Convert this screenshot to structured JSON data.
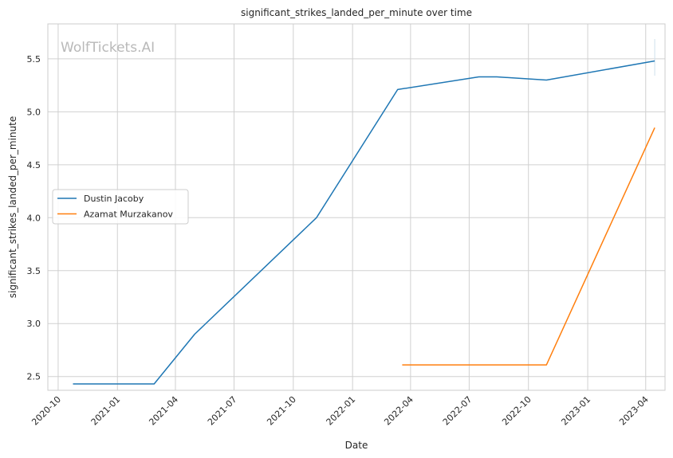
{
  "chart_data": {
    "type": "line",
    "title": "significant_strikes_landed_per_minute over time",
    "xlabel": "Date",
    "ylabel": "significant_strikes_landed_per_minute",
    "watermark": "WolfTickets.AI",
    "x_ticks": [
      "2020-10",
      "2021-01",
      "2021-04",
      "2021-07",
      "2021-10",
      "2022-01",
      "2022-04",
      "2022-07",
      "2022-10",
      "2023-01",
      "2023-04"
    ],
    "y_ticks": [
      "2.5",
      "3.0",
      "3.5",
      "4.0",
      "4.5",
      "5.0",
      "5.5"
    ],
    "xlim": [
      "2020-09-15",
      "2023-05-01"
    ],
    "ylim": [
      2.37,
      5.83
    ],
    "grid": true,
    "legend_position": "center-left",
    "series": [
      {
        "name": "Dustin Jacoby",
        "color": "#1f77b4",
        "points": [
          {
            "x": "2020-10-24",
            "y": 2.43
          },
          {
            "x": "2021-02-27",
            "y": 2.43
          },
          {
            "x": "2021-05-01",
            "y": 2.9
          },
          {
            "x": "2021-11-06",
            "y": 4.0
          },
          {
            "x": "2022-03-12",
            "y": 5.21
          },
          {
            "x": "2022-07-16",
            "y": 5.33
          },
          {
            "x": "2022-08-13",
            "y": 5.33
          },
          {
            "x": "2022-10-29",
            "y": 5.3
          },
          {
            "x": "2023-04-15",
            "y": 5.48
          }
        ]
      },
      {
        "name": "Azamat Murzakanov",
        "color": "#ff7f0e",
        "points": [
          {
            "x": "2022-03-19",
            "y": 2.61
          },
          {
            "x": "2022-10-29",
            "y": 2.61
          },
          {
            "x": "2023-04-15",
            "y": 4.85
          }
        ]
      }
    ]
  }
}
